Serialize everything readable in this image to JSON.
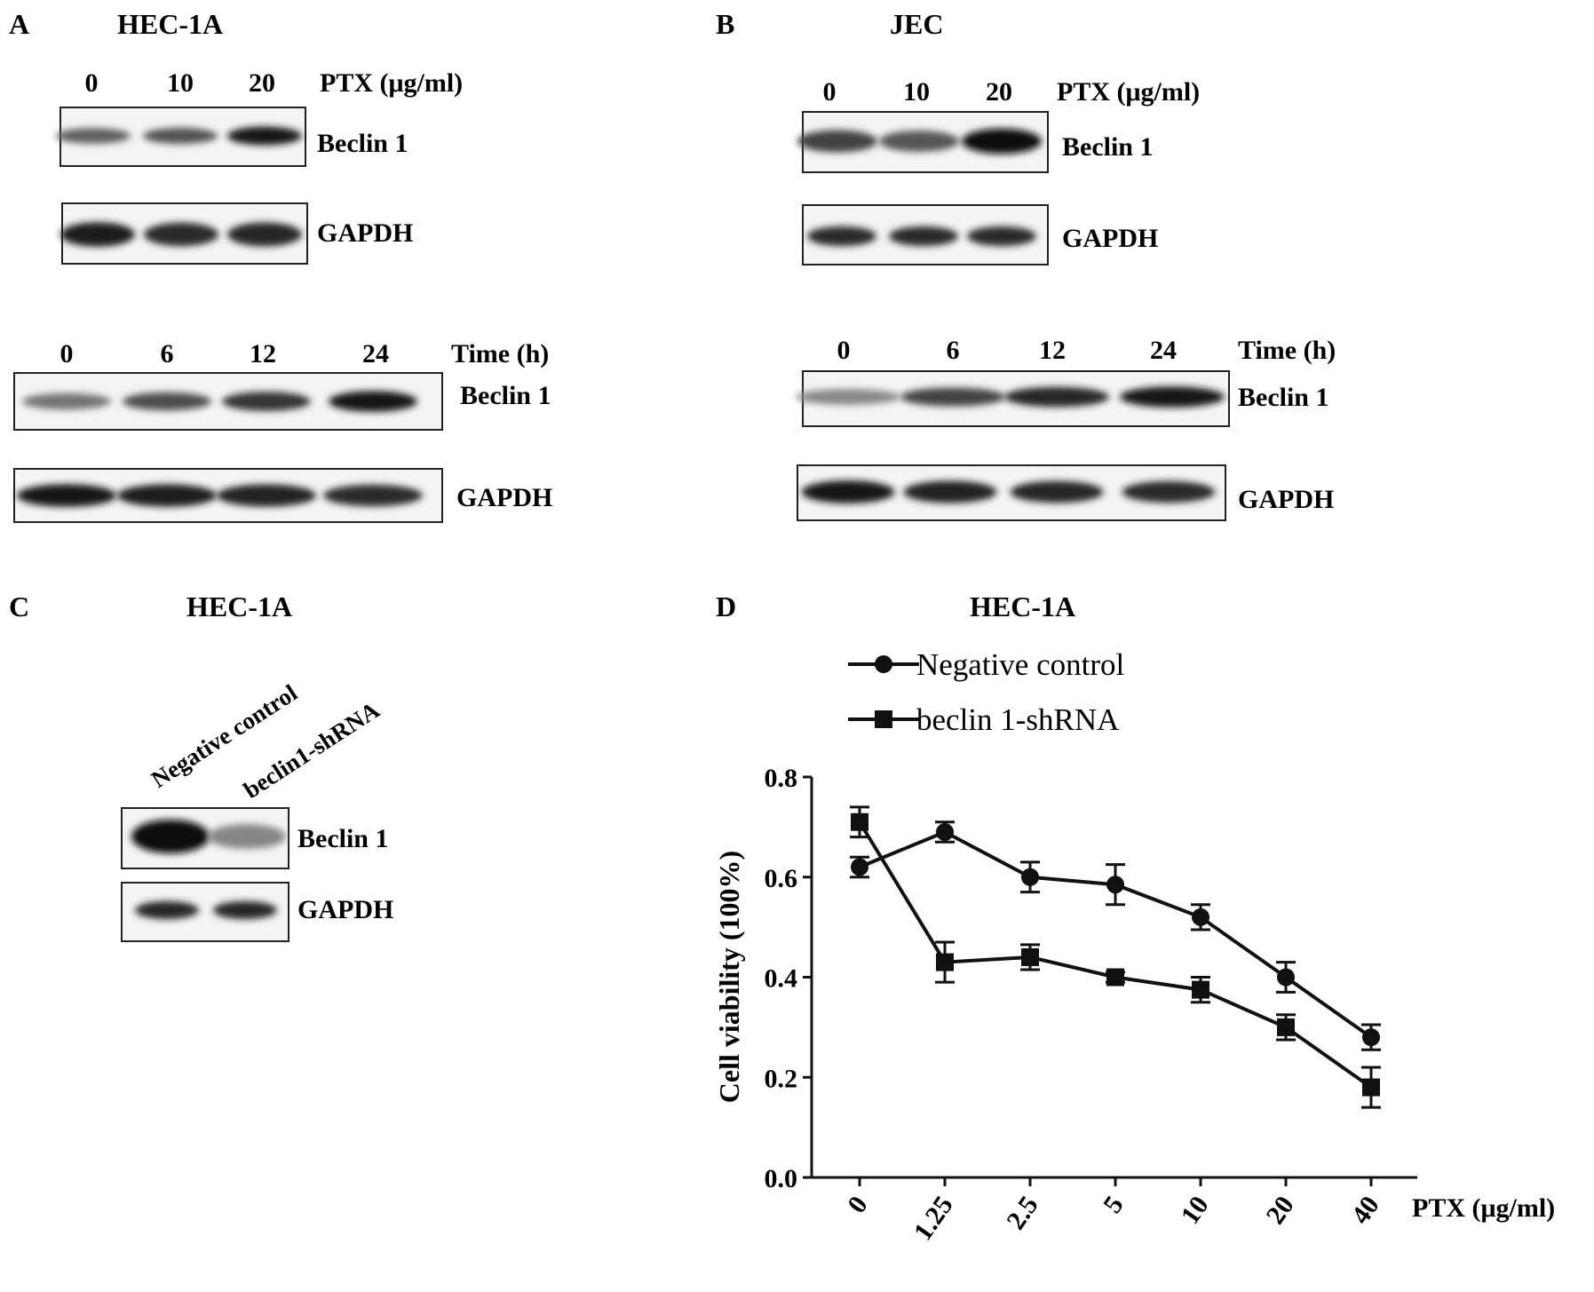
{
  "panelA": {
    "letter": "A",
    "title": "HEC-1A",
    "blot1": {
      "lanes": [
        "0",
        "10",
        "20"
      ],
      "condition": "PTX (μg/ml)",
      "band_labels": [
        "Beclin 1",
        "GAPDH"
      ],
      "beclin_intensity": [
        0.55,
        0.62,
        0.92
      ],
      "gapdh_intensity": [
        0.9,
        0.82,
        0.85
      ]
    },
    "blot2": {
      "lanes": [
        "0",
        "6",
        "12",
        "24"
      ],
      "condition": "Time (h)",
      "band_labels": [
        "Beclin 1",
        "GAPDH"
      ],
      "beclin_intensity": [
        0.45,
        0.65,
        0.78,
        0.95
      ],
      "gapdh_intensity": [
        0.92,
        0.9,
        0.88,
        0.82
      ]
    }
  },
  "panelB": {
    "letter": "B",
    "title": "JEC",
    "blot1": {
      "lanes": [
        "0",
        "10",
        "20"
      ],
      "condition": "PTX (μg/ml)",
      "band_labels": [
        "Beclin 1",
        "GAPDH"
      ],
      "beclin_intensity": [
        0.7,
        0.6,
        0.98
      ],
      "gapdh_intensity": [
        0.82,
        0.82,
        0.82
      ]
    },
    "blot2": {
      "lanes": [
        "0",
        "6",
        "12",
        "24"
      ],
      "condition": "Time (h)",
      "band_labels": [
        "Beclin 1",
        "GAPDH"
      ],
      "beclin_intensity": [
        0.35,
        0.7,
        0.85,
        0.95
      ],
      "gapdh_intensity": [
        0.95,
        0.88,
        0.85,
        0.82
      ]
    }
  },
  "panelC": {
    "letter": "C",
    "title": "HEC-1A",
    "lanes": [
      "Negative control",
      "beclin1-shRNA"
    ],
    "band_labels": [
      "Beclin 1",
      "GAPDH"
    ],
    "beclin_intensity": [
      0.98,
      0.35
    ],
    "gapdh_intensity": [
      0.85,
      0.85
    ]
  },
  "panelD": {
    "letter": "D",
    "title": "HEC-1A",
    "chart_data": {
      "type": "line",
      "title": "HEC-1A",
      "xlabel": "PTX (μg/ml)",
      "ylabel": "Cell viability (100%)",
      "categories": [
        "0",
        "1.25",
        "2.5",
        "5",
        "10",
        "20",
        "40"
      ],
      "ylim": [
        0,
        0.8
      ],
      "yticks": [
        "0.0",
        "0.2",
        "0.4",
        "0.6",
        "0.8"
      ],
      "legend_position": "top",
      "series": [
        {
          "name": "Negative control",
          "marker": "circle",
          "values": [
            0.62,
            0.69,
            0.6,
            0.585,
            0.52,
            0.4,
            0.28
          ],
          "errors": [
            0.02,
            0.02,
            0.03,
            0.04,
            0.025,
            0.03,
            0.025
          ]
        },
        {
          "name": "beclin 1-shRNA",
          "marker": "square",
          "values": [
            0.71,
            0.43,
            0.44,
            0.4,
            0.375,
            0.3,
            0.18
          ],
          "errors": [
            0.03,
            0.04,
            0.025,
            0.01,
            0.025,
            0.025,
            0.04
          ]
        }
      ]
    }
  }
}
